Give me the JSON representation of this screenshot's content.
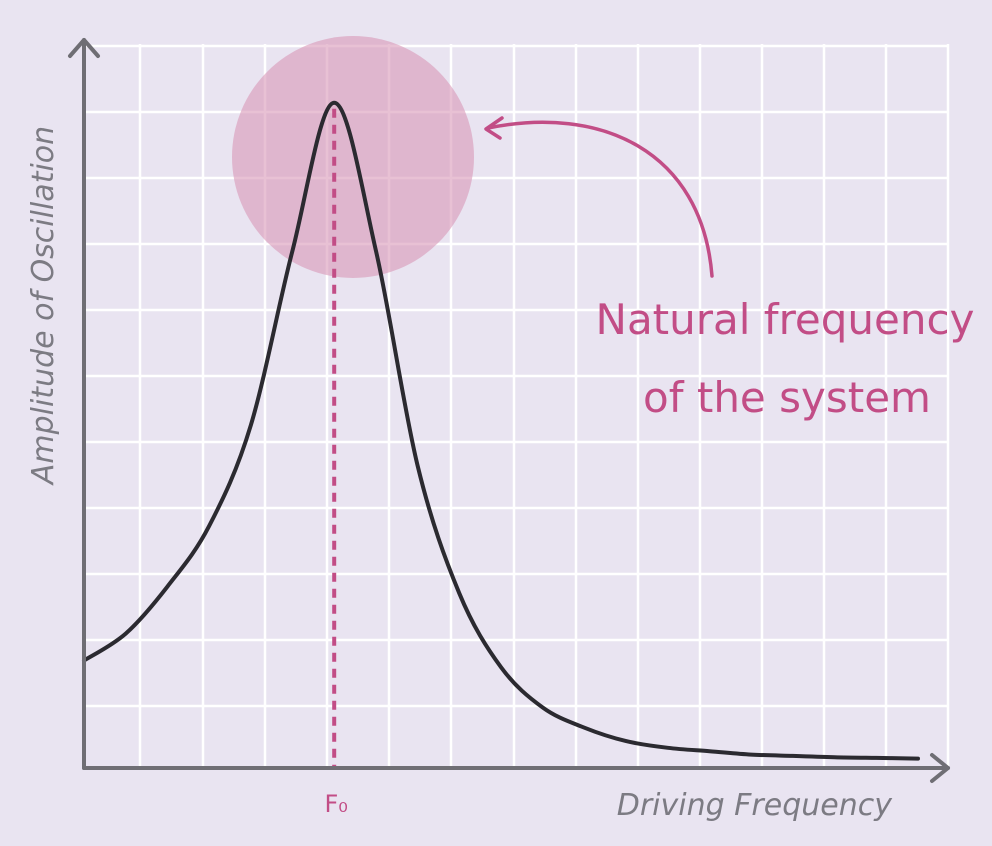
{
  "chart_data": {
    "type": "line",
    "xlabel": "Driving Frequency",
    "ylabel": "Amplitude of Oscillation",
    "x_tick_labels": [
      "F₀"
    ],
    "grid": true,
    "series": [
      {
        "x": [
          0,
          0.5,
          1,
          1.5,
          2,
          2.5,
          3,
          3.5,
          4,
          4.5,
          5,
          5.5,
          6,
          6.5,
          7,
          7.5,
          8,
          8.5,
          9,
          9.5,
          10
        ],
        "values": [
          0.16,
          0.2,
          0.27,
          0.36,
          0.51,
          0.77,
          0.99,
          0.77,
          0.45,
          0.26,
          0.15,
          0.09,
          0.06,
          0.04,
          0.03,
          0.025,
          0.02,
          0.018,
          0.016,
          0.015,
          0.014
        ]
      }
    ],
    "peak": {
      "x": 3,
      "label": "F₀"
    },
    "annotation": {
      "lines": [
        "Natural frequency",
        "of the system"
      ],
      "color": "#c24d86"
    },
    "highlight_color": "#d897b8",
    "curve_color": "#2b2a30",
    "background": "#e9e4f1"
  }
}
